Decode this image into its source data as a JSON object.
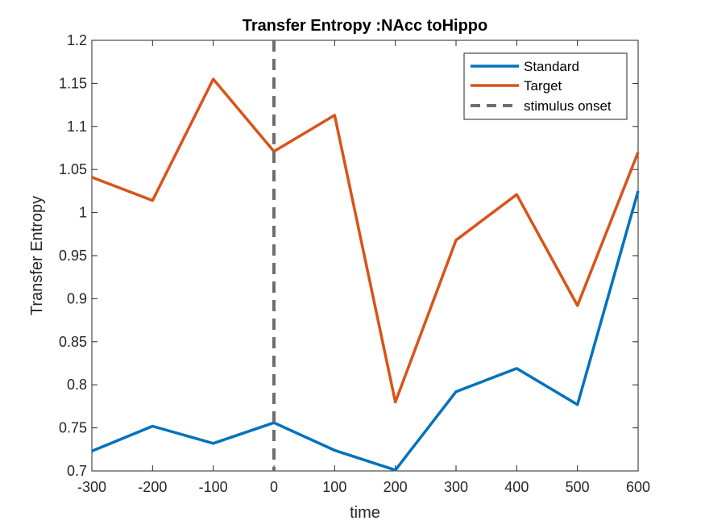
{
  "chart_data": {
    "type": "line",
    "title": "Transfer Entropy :NAcc toHippo",
    "xlabel": "time",
    "ylabel": "Transfer Entropy",
    "x": [
      -300,
      -200,
      -100,
      0,
      100,
      200,
      300,
      400,
      500,
      600
    ],
    "xlim": [
      -300,
      600
    ],
    "ylim": [
      0.7,
      1.2
    ],
    "xticks": [
      -300,
      -200,
      -100,
      0,
      100,
      200,
      300,
      400,
      500,
      600
    ],
    "yticks": [
      0.7,
      0.75,
      0.8,
      0.85,
      0.9,
      0.95,
      1,
      1.05,
      1.1,
      1.15,
      1.2
    ],
    "xtick_labels": [
      "-300",
      "-200",
      "-100",
      "0",
      "100",
      "200",
      "300",
      "400",
      "500",
      "600"
    ],
    "ytick_labels": [
      "0.7",
      "0.75",
      "0.8",
      "0.85",
      "0.9",
      "0.95",
      "1",
      "1.05",
      "1.1",
      "1.15",
      "1.2"
    ],
    "grid": false,
    "legend_position": "top-right",
    "series": [
      {
        "name": "Standard",
        "color": "#0072BD",
        "values": [
          0.723,
          0.752,
          0.732,
          0.756,
          0.724,
          0.701,
          0.792,
          0.819,
          0.777,
          1.025
        ]
      },
      {
        "name": "Target",
        "color": "#D95319",
        "values": [
          1.041,
          1.014,
          1.155,
          1.071,
          1.113,
          0.78,
          0.968,
          1.021,
          0.892,
          1.07
        ]
      }
    ],
    "vline": {
      "name": "stimulus onset",
      "x": 0,
      "color": "#6E6E6E",
      "style": "dashed"
    }
  }
}
